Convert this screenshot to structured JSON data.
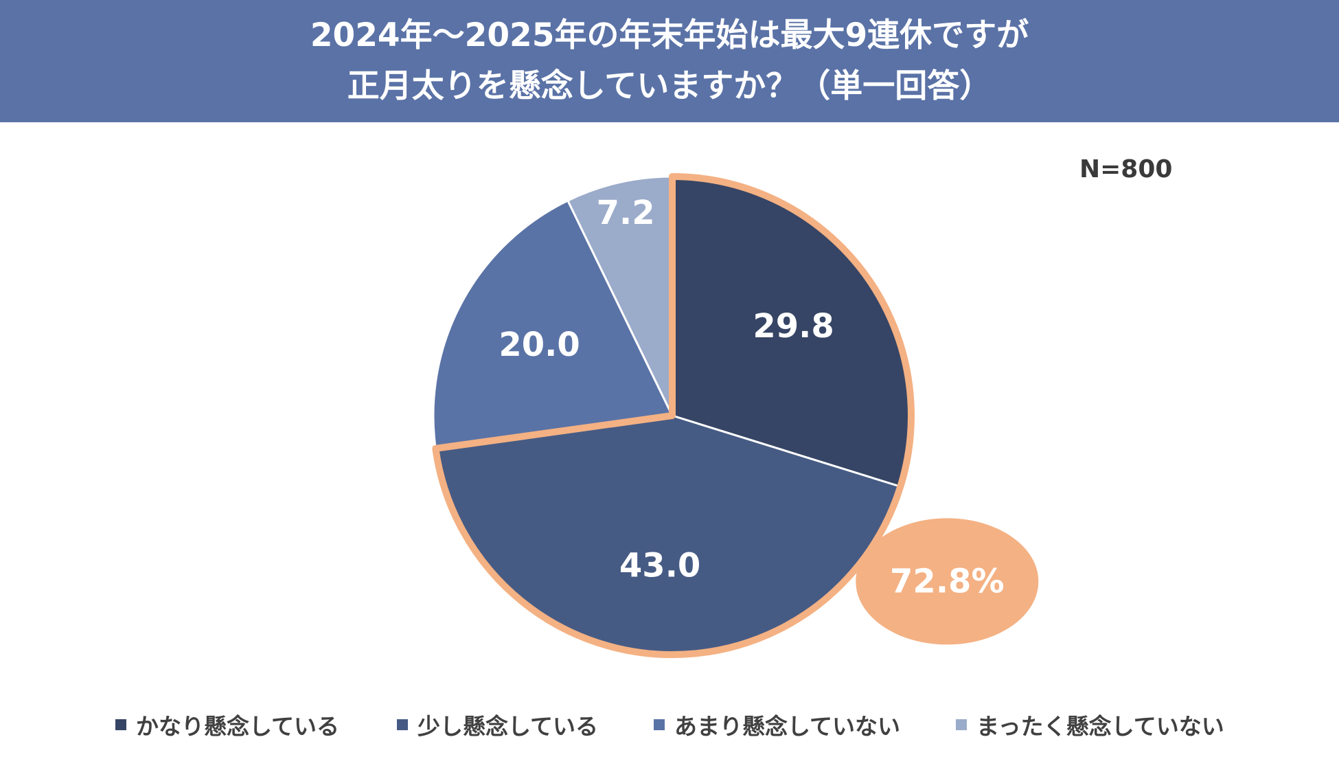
{
  "title": {
    "line1": "2024年～2025年の年末年始は最大9連休ですが",
    "line2": "正月太りを懸念していますか？（単一回答）"
  },
  "sample_size": "N=800",
  "highlight": {
    "label": "72.8%",
    "fill": "#f4b183",
    "outline": "#f4b183"
  },
  "chart_data": {
    "type": "pie",
    "title": "2024年～2025年の年末年始は最大9連休ですが正月太りを懸念していますか？（単一回答）",
    "start_angle_deg": 0,
    "direction": "clockwise",
    "legend_position": "bottom",
    "slices": [
      {
        "label": "かなり懸念している",
        "value": 29.8,
        "value_label": "29.8",
        "color": "#364565"
      },
      {
        "label": "少し懸念している",
        "value": 43.0,
        "value_label": "43.0",
        "color": "#465b84"
      },
      {
        "label": "あまり懸念していない",
        "value": 20.0,
        "value_label": "20.0",
        "color": "#5a73a6"
      },
      {
        "label": "まったく懸念していない",
        "value": 7.2,
        "value_label": "7.2",
        "color": "#9babca"
      }
    ]
  }
}
